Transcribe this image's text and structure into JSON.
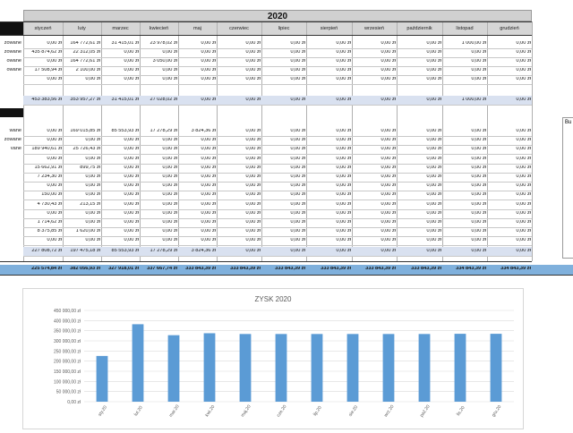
{
  "sheet": {
    "year": "2020",
    "months": [
      "styczeń",
      "luty",
      "marzec",
      "kwiecień",
      "maj",
      "czerwiec",
      "lipiec",
      "sierpień",
      "wrzesień",
      "październik",
      "listopad",
      "grudzień"
    ],
    "top_labels": [
      "zowane",
      "zowane",
      "owane",
      "owane",
      ""
    ],
    "top_rows": [
      [
        "0,00 zł",
        "164 772,61 zł",
        "31 415,01 zł",
        "23 978,02 zł",
        "0,00 zł",
        "0,00 zł",
        "0,00 zł",
        "0,00 zł",
        "0,00 zł",
        "0,00 zł",
        "1 000,00 zł",
        "0,00 zł"
      ],
      [
        "435 874,62 zł",
        "22 312,05 zł",
        "0,00 zł",
        "0,00 zł",
        "0,00 zł",
        "0,00 zł",
        "0,00 zł",
        "0,00 zł",
        "0,00 zł",
        "0,00 zł",
        "0,00 zł",
        "0,00 zł"
      ],
      [
        "0,00 zł",
        "164 772,61 zł",
        "0,00 zł",
        "3 050,00 zł",
        "0,00 zł",
        "0,00 zł",
        "0,00 zł",
        "0,00 zł",
        "0,00 zł",
        "0,00 zł",
        "0,00 zł",
        "0,00 zł"
      ],
      [
        "17 508,94 zł",
        "2 100,00 zł",
        "0,00 zł",
        "0,00 zł",
        "0,00 zł",
        "0,00 zł",
        "0,00 zł",
        "0,00 zł",
        "0,00 zł",
        "0,00 zł",
        "0,00 zł",
        "0,00 zł"
      ],
      [
        "0,00 zł",
        "0,00 zł",
        "0,00 zł",
        "0,00 zł",
        "0,00 zł",
        "0,00 zł",
        "0,00 zł",
        "0,00 zł",
        "0,00 zł",
        "0,00 zł",
        "0,00 zł",
        "0,00 zł"
      ]
    ],
    "top_total": [
      "453 383,56 zł",
      "353 957,27 zł",
      "31 415,01 zł",
      "27 028,02 zł",
      "0,00 zł",
      "0,00 zł",
      "0,00 zł",
      "0,00 zł",
      "0,00 zł",
      "0,00 zł",
      "1 000,00 zł",
      "0,00 zł"
    ],
    "mid_labels": [
      "wane",
      "zowane",
      "vane",
      "",
      "",
      "",
      "",
      "",
      "",
      "",
      "",
      "",
      ""
    ],
    "mid_rows": [
      [
        "0,00 zł",
        "169 015,85 zł",
        "85 553,93 zł",
        "17 278,29 zł",
        "3 824,36 zł",
        "0,00 zł",
        "0,00 zł",
        "0,00 zł",
        "0,00 zł",
        "0,00 zł",
        "0,00 zł",
        "0,00 zł"
      ],
      [
        "0,00 zł",
        "0,00 zł",
        "0,00 zł",
        "0,00 zł",
        "0,00 zł",
        "0,00 zł",
        "0,00 zł",
        "0,00 zł",
        "0,00 zł",
        "0,00 zł",
        "0,00 zł",
        "0,00 zł"
      ],
      [
        "189 940,61 zł",
        "25 726,43 zł",
        "0,00 zł",
        "0,00 zł",
        "0,00 zł",
        "0,00 zł",
        "0,00 zł",
        "0,00 zł",
        "0,00 zł",
        "0,00 zł",
        "0,00 zł",
        "0,00 zł"
      ],
      [
        "0,00 zł",
        "0,00 zł",
        "0,00 zł",
        "0,00 zł",
        "0,00 zł",
        "0,00 zł",
        "0,00 zł",
        "0,00 zł",
        "0,00 zł",
        "0,00 zł",
        "0,00 zł",
        "0,00 zł"
      ],
      [
        "15 662,91 zł",
        "899,75 zł",
        "0,00 zł",
        "0,00 zł",
        "0,00 zł",
        "0,00 zł",
        "0,00 zł",
        "0,00 zł",
        "0,00 zł",
        "0,00 zł",
        "0,00 zł",
        "0,00 zł"
      ],
      [
        "7 234,30 zł",
        "0,00 zł",
        "0,00 zł",
        "0,00 zł",
        "0,00 zł",
        "0,00 zł",
        "0,00 zł",
        "0,00 zł",
        "0,00 zł",
        "0,00 zł",
        "0,00 zł",
        "0,00 zł"
      ],
      [
        "0,00 zł",
        "0,00 zł",
        "0,00 zł",
        "0,00 zł",
        "0,00 zł",
        "0,00 zł",
        "0,00 zł",
        "0,00 zł",
        "0,00 zł",
        "0,00 zł",
        "0,00 zł",
        "0,00 zł"
      ],
      [
        "150,00 zł",
        "0,00 zł",
        "0,00 zł",
        "0,00 zł",
        "0,00 zł",
        "0,00 zł",
        "0,00 zł",
        "0,00 zł",
        "0,00 zł",
        "0,00 zł",
        "0,00 zł",
        "0,00 zł"
      ],
      [
        "4 730,43 zł",
        "213,15 zł",
        "0,00 zł",
        "0,00 zł",
        "0,00 zł",
        "0,00 zł",
        "0,00 zł",
        "0,00 zł",
        "0,00 zł",
        "0,00 zł",
        "0,00 zł",
        "0,00 zł"
      ],
      [
        "0,00 zł",
        "0,00 zł",
        "0,00 zł",
        "0,00 zł",
        "0,00 zł",
        "0,00 zł",
        "0,00 zł",
        "0,00 zł",
        "0,00 zł",
        "0,00 zł",
        "0,00 zł",
        "0,00 zł"
      ],
      [
        "1 714,62 zł",
        "0,00 zł",
        "0,00 zł",
        "0,00 zł",
        "0,00 zł",
        "0,00 zł",
        "0,00 zł",
        "0,00 zł",
        "0,00 zł",
        "0,00 zł",
        "0,00 zł",
        "0,00 zł"
      ],
      [
        "8 375,85 zł",
        "1 620,00 zł",
        "0,00 zł",
        "0,00 zł",
        "0,00 zł",
        "0,00 zł",
        "0,00 zł",
        "0,00 zł",
        "0,00 zł",
        "0,00 zł",
        "0,00 zł",
        "0,00 zł"
      ],
      [
        "0,00 zł",
        "0,00 zł",
        "0,00 zł",
        "0,00 zł",
        "0,00 zł",
        "0,00 zł",
        "0,00 zł",
        "0,00 zł",
        "0,00 zł",
        "0,00 zł",
        "0,00 zł",
        "0,00 zł"
      ]
    ],
    "mid_total": [
      "227 808,72 zł",
      "197 475,18 zł",
      "85 553,93 zł",
      "17 278,29 zł",
      "3 824,36 zł",
      "0,00 zł",
      "0,00 zł",
      "0,00 zł",
      "0,00 zł",
      "0,00 zł",
      "0,00 zł",
      "0,00 zł"
    ],
    "profit_total": [
      "225 574,84 zł",
      "382 056,93 zł",
      "327 918,01 zł",
      "337 667,74 zł",
      "333 843,39 zł",
      "333 843,39 zł",
      "333 843,39 zł",
      "333 843,39 zł",
      "333 843,39 zł",
      "333 843,39 zł",
      "334 843,39 zł",
      "334 843,39 zł"
    ]
  },
  "sidebox": {
    "label": "Bu"
  },
  "colors": {
    "bar": "#5b9bd5",
    "band": "#d9e1f0",
    "total_band": "#7fb0dc",
    "header": "#d6d6d6"
  },
  "chart_data": {
    "type": "bar",
    "title": "ZYSK 2020",
    "categories": [
      "sty.20",
      "lut.20",
      "mar.20",
      "kwi.20",
      "maj.20",
      "cze.20",
      "lip.20",
      "sie.20",
      "wrz.20",
      "paź.20",
      "lis.20",
      "gru.20"
    ],
    "values": [
      225574.84,
      382056.93,
      327918.01,
      337667.74,
      333843.39,
      333843.39,
      333843.39,
      333843.39,
      333843.39,
      333843.39,
      334843.39,
      334843.39
    ],
    "ylim": [
      0,
      450000
    ],
    "yticks": [
      0,
      50000,
      100000,
      150000,
      200000,
      250000,
      300000,
      350000,
      400000,
      450000
    ],
    "ytick_labels": [
      "0,00 zł",
      "50 000,00 zł",
      "100 000,00 zł",
      "150 000,00 zł",
      "200 000,00 zł",
      "250 000,00 zł",
      "300 000,00 zł",
      "350 000,00 zł",
      "400 000,00 zł",
      "450 000,00 zł"
    ],
    "grid": true,
    "legend": "none"
  }
}
